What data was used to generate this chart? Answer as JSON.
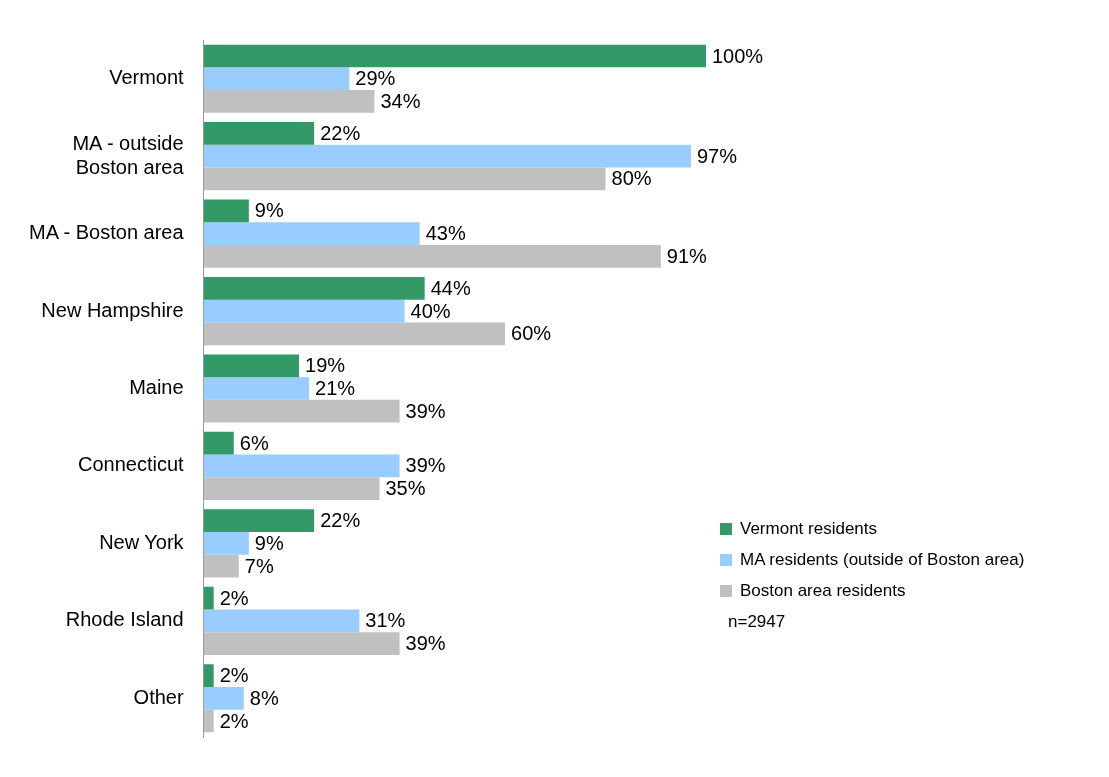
{
  "chart_data": {
    "type": "bar",
    "orientation": "horizontal",
    "legend": "right",
    "tick_labels": "y",
    "grid": false,
    "categories": [
      "Vermont",
      "MA - outside Boston area",
      "MA - Boston area",
      "New Hampshire",
      "Maine",
      "Connecticut",
      "New York",
      "Rhode Island",
      "Other"
    ],
    "series": [
      {
        "name": "Vermont residents",
        "color": "#339966",
        "values": [
          100,
          22,
          9,
          44,
          19,
          6,
          22,
          2,
          2
        ],
        "value_labels": [
          "100%",
          "22%",
          "9%",
          "44%",
          "19%",
          "6%",
          "22%",
          "2%",
          "2%"
        ]
      },
      {
        "name": "MA residents (outside of Boston area)",
        "color": "#99ccff",
        "values": [
          29,
          97,
          43,
          40,
          21,
          39,
          9,
          31,
          8
        ],
        "value_labels": [
          "29%",
          "97%",
          "43%",
          "40%",
          "21%",
          "39%",
          "9%",
          "31%",
          "8%"
        ]
      },
      {
        "name": "Boston area residents",
        "color": "#c0c0c0",
        "values": [
          34,
          80,
          91,
          60,
          39,
          35,
          7,
          39,
          2
        ],
        "value_labels": [
          "34%",
          "80%",
          "91%",
          "60%",
          "39%",
          "35%",
          "7%",
          "39%",
          "2%"
        ]
      }
    ],
    "annotations": [
      "n=2947"
    ]
  }
}
